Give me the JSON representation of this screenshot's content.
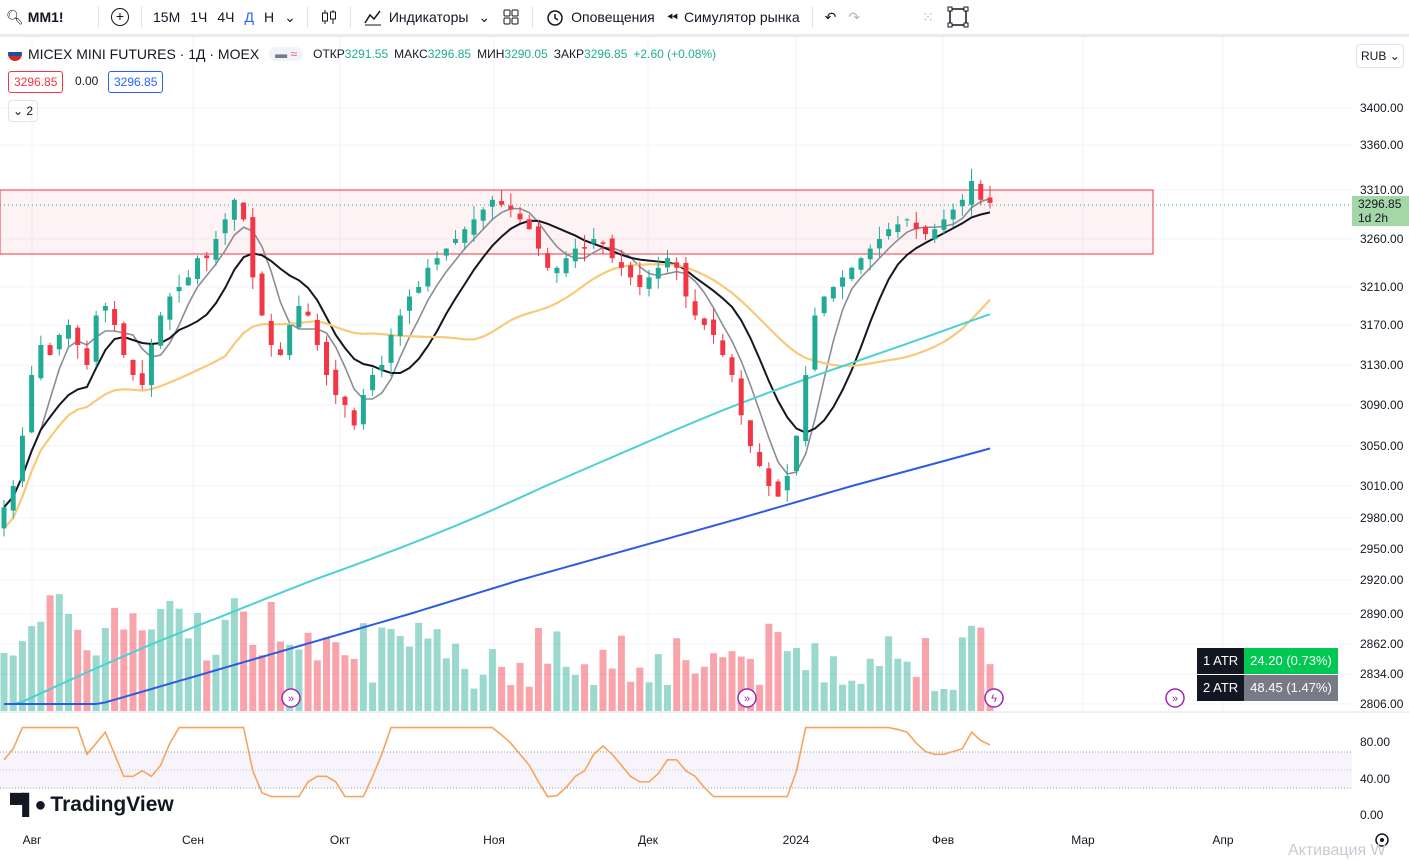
{
  "toolbar": {
    "symbol": "MM1!",
    "intervals": [
      "15М",
      "1Ч",
      "4Ч",
      "Д",
      "Н"
    ],
    "active_interval": "Д",
    "indicators": "Индикаторы",
    "alerts": "Оповещения",
    "replay": "Симулятор рынка"
  },
  "legend": {
    "title": "MICEX MINI FUTURES · 1Д · MOEX",
    "open_label": "ОТКР",
    "open": "3291.55",
    "high_label": "МАКС",
    "high": "3296.85",
    "low_label": "МИН",
    "low": "3290.05",
    "close_label": "ЗАКР",
    "close": "3296.85",
    "change": "+2.60 (+0.08%)",
    "bid": "3296.85",
    "spread": "0.00",
    "ask": "3296.85",
    "collapsed_count": "2"
  },
  "price_axis": {
    "currency": "RUB",
    "ticks": [
      "3400.00",
      "3360.00",
      "3310.00",
      "3260.00",
      "3210.00",
      "3170.00",
      "3130.00",
      "3090.00",
      "3050.00",
      "3010.00",
      "2980.00",
      "2950.00",
      "2920.00",
      "2890.00",
      "2862.00",
      "2834.00",
      "2806.00"
    ],
    "last_price": "3296.85",
    "countdown": "1d 2h"
  },
  "time_axis": {
    "labels": [
      "Авг",
      "Сен",
      "Окт",
      "Ноя",
      "Дек",
      "2024",
      "Фев",
      "Мар",
      "Апр"
    ]
  },
  "atr": [
    {
      "name": "1 ATR",
      "value": "24.20 (0.73%)",
      "color": "#00c853"
    },
    {
      "name": "2 ATR",
      "value": "48.45 (1.47%)",
      "color": "#787b86"
    }
  ],
  "rsi_axis": {
    "ticks": [
      "80.00",
      "40.00",
      "0.00"
    ]
  },
  "branding": {
    "logo": "TradingView"
  },
  "watermark": "Активация W",
  "colors": {
    "up": "#22ab94",
    "down": "#f23645",
    "ma_gray": "#8a8d94",
    "ma_black": "#131722",
    "ma_orange": "#f9c97a",
    "ma_cyan": "#4dd0d1",
    "ma_blue": "#2f5be0",
    "rsi": "#f5a55f"
  },
  "chart_data": {
    "type": "candlestick",
    "symbol": "MM1!",
    "timeframe": "1Д",
    "y_range": [
      2806,
      3400
    ],
    "zone": {
      "top": 3312,
      "bottom": 3244
    },
    "closes": [
      2990,
      3010,
      3060,
      3120,
      3150,
      3140,
      3160,
      3170,
      3150,
      3130,
      3180,
      3190,
      3170,
      3140,
      3120,
      3110,
      3150,
      3180,
      3200,
      3210,
      3220,
      3240,
      3240,
      3260,
      3280,
      3300,
      3280,
      3220,
      3180,
      3150,
      3140,
      3170,
      3190,
      3180,
      3150,
      3120,
      3100,
      3090,
      3070,
      3100,
      3120,
      3130,
      3160,
      3180,
      3200,
      3210,
      3230,
      3240,
      3250,
      3260,
      3270,
      3280,
      3290,
      3300,
      3295,
      3290,
      3280,
      3270,
      3250,
      3230,
      3230,
      3240,
      3250,
      3250,
      3260,
      3255,
      3240,
      3230,
      3220,
      3210,
      3220,
      3230,
      3240,
      3230,
      3200,
      3180,
      3170,
      3160,
      3140,
      3120,
      3080,
      3050,
      3030,
      3010,
      3000,
      3020,
      3060,
      3120,
      3180,
      3200,
      3210,
      3220,
      3230,
      3240,
      3250,
      3260,
      3270,
      3275,
      3280,
      3270,
      3265,
      3270,
      3280,
      3290,
      3300,
      3320,
      3300,
      3296.85
    ]
  }
}
